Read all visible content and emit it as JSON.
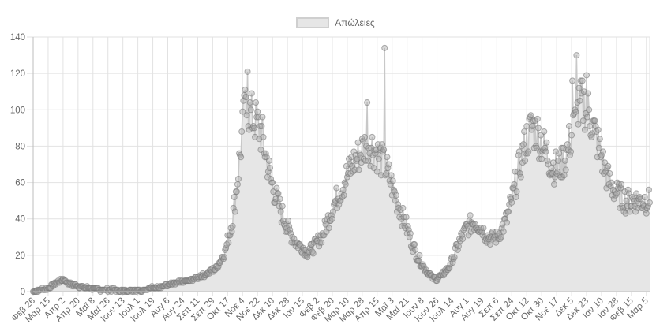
{
  "chart_data": {
    "type": "line",
    "title": "",
    "legend": [
      {
        "label": "Απώλειες",
        "fill": "#e6e6e6",
        "border": "#cfcfcf"
      }
    ],
    "legend_position": "top",
    "xlabel": "",
    "ylabel": "",
    "ylim": [
      0,
      140
    ],
    "yticks": [
      0,
      20,
      40,
      60,
      80,
      100,
      120,
      140
    ],
    "grid": true,
    "x_tick_labels": [
      "Φεβ 26",
      "Μαρ 15",
      "Απρ 2",
      "Απρ 20",
      "Μαϊ 8",
      "Μαϊ 26",
      "Ιουν 13",
      "Ιουλ 1",
      "Ιουλ 19",
      "Αυγ 6",
      "Αυγ 24",
      "Σεπ 11",
      "Σεπ 29",
      "Οκτ 17",
      "Νοε 4",
      "Νοε 22",
      "Δεκ 10",
      "Δεκ 28",
      "Ιαν 15",
      "Φεβ 2",
      "Φεβ 20",
      "Μαρ 10",
      "Μαρ 28",
      "Απρ 15",
      "Μαϊ 3",
      "Μαϊ 21",
      "Ιουν 8",
      "Ιουν 26",
      "Ιουλ 14",
      "Αυγ 1",
      "Αυγ 19",
      "Σεπ 6",
      "Σεπ 24",
      "Οκτ 12",
      "Οκτ 30",
      "Νοε 17",
      "Δεκ 5",
      "Δεκ 23",
      "Ιαν 10",
      "Ιαν 28",
      "Φεβ 15",
      "Μαρ 5"
    ],
    "tick_interval_days": 18,
    "series": [
      {
        "name": "Απώλειες",
        "key_points": [
          [
            0,
            0
          ],
          [
            10,
            1
          ],
          [
            18,
            2
          ],
          [
            28,
            5
          ],
          [
            36,
            7
          ],
          [
            45,
            4
          ],
          [
            54,
            3
          ],
          [
            63,
            2
          ],
          [
            72,
            2
          ],
          [
            81,
            1
          ],
          [
            90,
            1
          ],
          [
            100,
            1
          ],
          [
            110,
            0
          ],
          [
            120,
            1
          ],
          [
            130,
            1
          ],
          [
            144,
            2
          ],
          [
            155,
            3
          ],
          [
            165,
            4
          ],
          [
            176,
            5
          ],
          [
            187,
            6
          ],
          [
            198,
            8
          ],
          [
            209,
            10
          ],
          [
            220,
            13
          ],
          [
            231,
            22
          ],
          [
            240,
            40
          ],
          [
            246,
            62
          ],
          [
            250,
            80
          ],
          [
            254,
            98
          ],
          [
            258,
            100
          ],
          [
            264,
            96
          ],
          [
            270,
            92
          ],
          [
            276,
            85
          ],
          [
            282,
            70
          ],
          [
            288,
            58
          ],
          [
            294,
            50
          ],
          [
            300,
            42
          ],
          [
            306,
            35
          ],
          [
            312,
            30
          ],
          [
            318,
            26
          ],
          [
            324,
            24
          ],
          [
            330,
            22
          ],
          [
            336,
            24
          ],
          [
            342,
            27
          ],
          [
            348,
            31
          ],
          [
            354,
            38
          ],
          [
            360,
            46
          ],
          [
            366,
            52
          ],
          [
            372,
            58
          ],
          [
            378,
            64
          ],
          [
            384,
            70
          ],
          [
            390,
            74
          ],
          [
            396,
            78
          ],
          [
            402,
            82
          ],
          [
            408,
            80
          ],
          [
            414,
            76
          ],
          [
            420,
            72
          ],
          [
            426,
            66
          ],
          [
            432,
            58
          ],
          [
            438,
            50
          ],
          [
            444,
            42
          ],
          [
            450,
            35
          ],
          [
            456,
            27
          ],
          [
            462,
            20
          ],
          [
            468,
            15
          ],
          [
            474,
            11
          ],
          [
            480,
            8
          ],
          [
            486,
            7
          ],
          [
            492,
            9
          ],
          [
            498,
            12
          ],
          [
            504,
            17
          ],
          [
            510,
            24
          ],
          [
            516,
            30
          ],
          [
            522,
            35
          ],
          [
            528,
            38
          ],
          [
            534,
            38
          ],
          [
            540,
            35
          ],
          [
            546,
            31
          ],
          [
            552,
            29
          ],
          [
            558,
            30
          ],
          [
            564,
            34
          ],
          [
            570,
            40
          ],
          [
            576,
            50
          ],
          [
            582,
            62
          ],
          [
            588,
            74
          ],
          [
            594,
            84
          ],
          [
            600,
            90
          ],
          [
            606,
            88
          ],
          [
            612,
            82
          ],
          [
            618,
            76
          ],
          [
            624,
            70
          ],
          [
            630,
            68
          ],
          [
            636,
            70
          ],
          [
            642,
            76
          ],
          [
            648,
            86
          ],
          [
            654,
            96
          ],
          [
            660,
            104
          ],
          [
            666,
            102
          ],
          [
            672,
            94
          ],
          [
            678,
            84
          ],
          [
            684,
            74
          ],
          [
            690,
            64
          ],
          [
            696,
            58
          ],
          [
            702,
            54
          ],
          [
            708,
            52
          ],
          [
            713,
            50
          ]
        ],
        "spikes": [
          [
            254,
            108
          ],
          [
            258,
            121
          ],
          [
            402,
            104
          ],
          [
            423,
            134
          ],
          [
            649,
            116
          ],
          [
            654,
            130
          ],
          [
            666,
            119
          ]
        ],
        "days_total": 743,
        "color_fill": "#e6e6e6",
        "color_line": "#c8c8c8",
        "color_point_fill": "rgba(170,170,170,0.45)",
        "color_point_border": "rgba(120,120,120,0.6)"
      }
    ]
  }
}
